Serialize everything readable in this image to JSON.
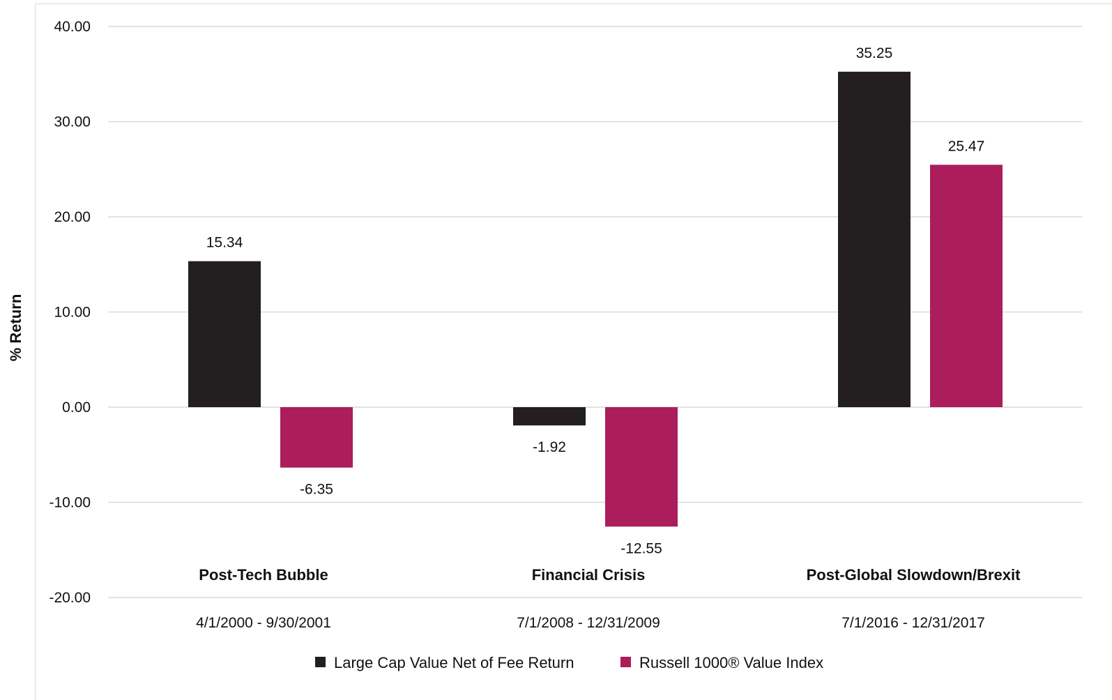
{
  "chart_data": {
    "type": "bar",
    "ylabel": "% Return",
    "ylim": [
      -20,
      40
    ],
    "yticks": [
      "40.00",
      "30.00",
      "20.00",
      "10.00",
      "0.00",
      "-10.00",
      "-20.00"
    ],
    "yticks_values": [
      40,
      30,
      20,
      10,
      0,
      -10,
      -20
    ],
    "grid": true,
    "legend_position": "bottom",
    "categories": [
      "Post-Tech Bubble",
      "Financial Crisis",
      "Post-Global Slowdown/Brexit"
    ],
    "date_ranges": [
      "4/1/2000 - 9/30/2001",
      "7/1/2008 - 12/31/2009",
      "7/1/2016 - 12/31/2017"
    ],
    "series": [
      {
        "name": "Large Cap Value Net of Fee Return",
        "color": "#231f20",
        "values": [
          15.34,
          -1.92,
          35.25
        ],
        "labels": [
          "15.34",
          "-1.92",
          "35.25"
        ]
      },
      {
        "name": "Russell 1000® Value Index",
        "color": "#ab1d5b",
        "values": [
          -6.35,
          -12.55,
          25.47
        ],
        "labels": [
          "-6.35",
          "-12.55",
          "25.47"
        ]
      }
    ]
  }
}
